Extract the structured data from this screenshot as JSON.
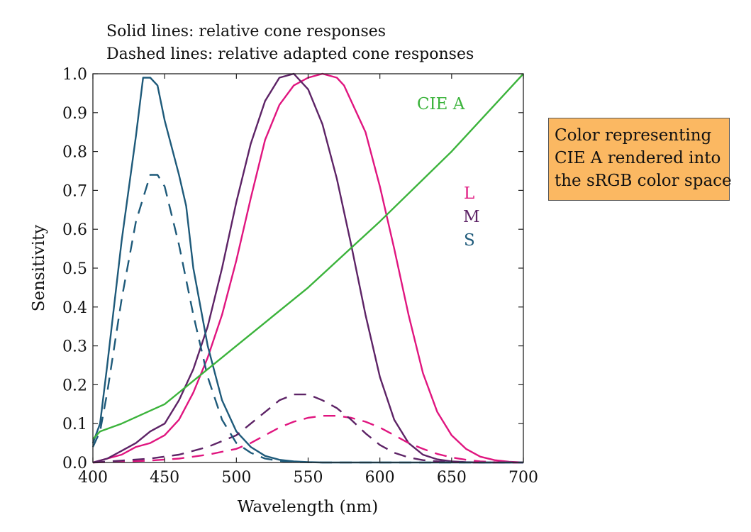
{
  "chart_data": {
    "type": "line",
    "subtitle_lines": [
      "Solid lines: relative cone responses",
      "Dashed lines: relative adapted cone responses"
    ],
    "xlabel": "Wavelength (nm)",
    "ylabel": "Sensitivity",
    "xlim": [
      400,
      700
    ],
    "ylim": [
      0,
      1.0
    ],
    "x_ticks": [
      "400",
      "450",
      "500",
      "550",
      "600",
      "650",
      "700"
    ],
    "y_ticks": [
      "0.0",
      "0.1",
      "0.2",
      "0.3",
      "0.4",
      "0.5",
      "0.6",
      "0.7",
      "0.8",
      "0.9",
      "1.0"
    ],
    "grid": false,
    "legend": [
      {
        "label": "L",
        "color": "#e0157f"
      },
      {
        "label": "M",
        "color": "#5d2366"
      },
      {
        "label": "S",
        "color": "#1e5a7a"
      }
    ],
    "annotations": [
      {
        "text": "CIE A",
        "color": "#3bb33b"
      }
    ],
    "callout_lines": [
      "Color representing",
      "CIE A rendered into",
      "the sRGB color space"
    ],
    "callout_color": "#fbb862",
    "series": [
      {
        "key": "L",
        "style": "solid",
        "color": "#e0157f",
        "x": [
          400,
          410,
          420,
          430,
          440,
          450,
          460,
          470,
          480,
          490,
          500,
          510,
          520,
          530,
          540,
          550,
          560,
          570,
          575,
          580,
          590,
          600,
          610,
          620,
          630,
          640,
          650,
          660,
          670,
          680,
          690,
          700
        ],
        "y": [
          0.0,
          0.01,
          0.02,
          0.04,
          0.05,
          0.07,
          0.11,
          0.18,
          0.27,
          0.38,
          0.52,
          0.68,
          0.83,
          0.92,
          0.97,
          0.99,
          1.0,
          0.99,
          0.97,
          0.93,
          0.85,
          0.71,
          0.55,
          0.38,
          0.23,
          0.13,
          0.07,
          0.035,
          0.015,
          0.006,
          0.002,
          0.0
        ]
      },
      {
        "key": "M",
        "style": "solid",
        "color": "#5d2366",
        "x": [
          400,
          410,
          420,
          430,
          440,
          450,
          460,
          470,
          480,
          490,
          500,
          510,
          520,
          530,
          540,
          545,
          550,
          560,
          570,
          580,
          590,
          600,
          610,
          620,
          630,
          640,
          650,
          660,
          670,
          680,
          690,
          700
        ],
        "y": [
          0.0,
          0.01,
          0.03,
          0.05,
          0.08,
          0.1,
          0.16,
          0.24,
          0.35,
          0.5,
          0.67,
          0.82,
          0.93,
          0.99,
          1.0,
          0.98,
          0.96,
          0.87,
          0.73,
          0.56,
          0.38,
          0.22,
          0.11,
          0.05,
          0.02,
          0.008,
          0.003,
          0.001,
          0.0,
          0.0,
          0.0,
          0.0
        ]
      },
      {
        "key": "S",
        "style": "solid",
        "color": "#1e5a7a",
        "x": [
          400,
          405,
          410,
          420,
          430,
          435,
          440,
          445,
          450,
          460,
          465,
          470,
          480,
          490,
          500,
          510,
          520,
          530,
          540,
          550,
          560,
          580,
          600,
          650,
          700
        ],
        "y": [
          0.05,
          0.1,
          0.25,
          0.57,
          0.84,
          0.99,
          0.99,
          0.97,
          0.88,
          0.74,
          0.66,
          0.5,
          0.3,
          0.16,
          0.08,
          0.04,
          0.017,
          0.007,
          0.003,
          0.001,
          0.0,
          0.0,
          0.0,
          0.0,
          0.0
        ]
      },
      {
        "key": "L-adapted",
        "style": "dashed",
        "color": "#e0157f",
        "x": [
          400,
          420,
          440,
          460,
          480,
          500,
          510,
          520,
          530,
          540,
          550,
          560,
          570,
          580,
          590,
          600,
          610,
          620,
          630,
          640,
          650,
          660,
          670,
          680,
          690,
          700
        ],
        "y": [
          0.0,
          0.002,
          0.005,
          0.01,
          0.02,
          0.035,
          0.05,
          0.07,
          0.09,
          0.105,
          0.115,
          0.12,
          0.12,
          0.115,
          0.105,
          0.09,
          0.07,
          0.05,
          0.035,
          0.022,
          0.013,
          0.007,
          0.003,
          0.001,
          0.0,
          0.0
        ]
      },
      {
        "key": "M-adapted",
        "style": "dashed",
        "color": "#5d2366",
        "x": [
          400,
          420,
          440,
          460,
          480,
          500,
          510,
          520,
          530,
          540,
          550,
          560,
          570,
          580,
          590,
          600,
          610,
          620,
          630,
          640,
          650,
          660,
          680,
          700
        ],
        "y": [
          0.0,
          0.005,
          0.01,
          0.02,
          0.04,
          0.07,
          0.1,
          0.13,
          0.16,
          0.175,
          0.175,
          0.16,
          0.14,
          0.11,
          0.075,
          0.045,
          0.025,
          0.013,
          0.006,
          0.003,
          0.001,
          0.0,
          0.0,
          0.0
        ]
      },
      {
        "key": "S-adapted",
        "style": "dashed",
        "color": "#1e5a7a",
        "x": [
          400,
          405,
          410,
          420,
          430,
          440,
          445,
          450,
          460,
          470,
          480,
          490,
          500,
          510,
          520,
          530,
          540,
          560,
          600,
          700
        ],
        "y": [
          0.04,
          0.08,
          0.18,
          0.42,
          0.62,
          0.74,
          0.74,
          0.71,
          0.56,
          0.38,
          0.22,
          0.11,
          0.05,
          0.025,
          0.01,
          0.004,
          0.001,
          0.0,
          0.0,
          0.0
        ]
      },
      {
        "key": "CIE A",
        "style": "solid",
        "color": "#3bb33b",
        "x": [
          400,
          405,
          420,
          450,
          500,
          550,
          600,
          650,
          700
        ],
        "y": [
          0.06,
          0.08,
          0.1,
          0.15,
          0.3,
          0.45,
          0.62,
          0.8,
          1.0
        ]
      }
    ]
  }
}
